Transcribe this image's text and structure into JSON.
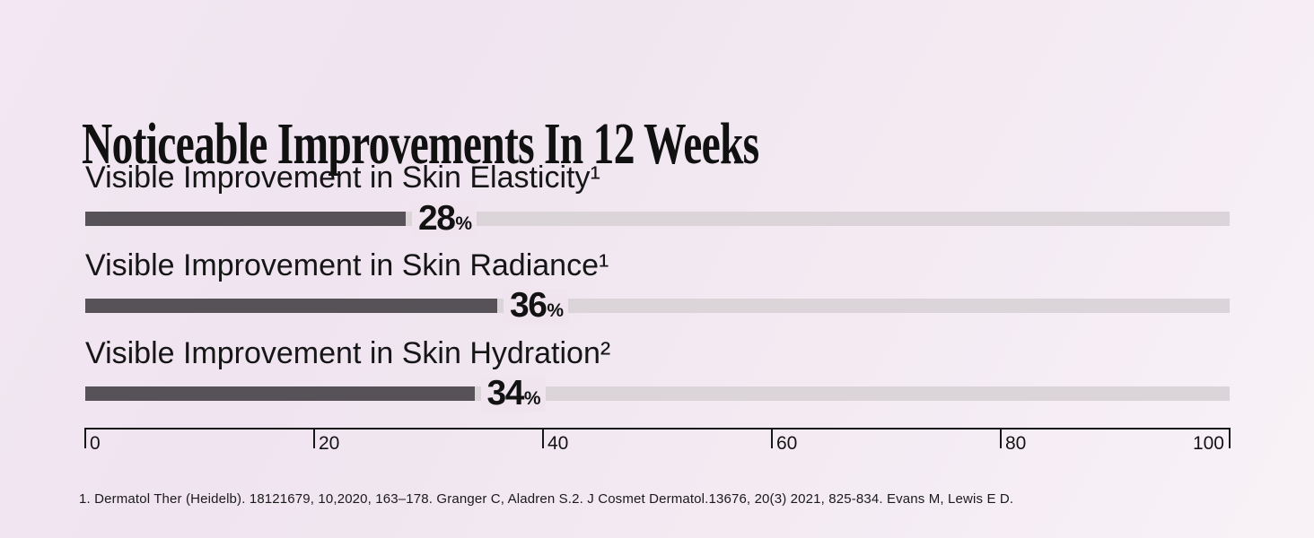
{
  "page": {
    "background_start": "#f2e7f2",
    "background_end": "#f8f2f7",
    "footnote": "1. Dermatol Ther (Heidelb). 18121679, 10,2020, 163–178. Granger C, Aladren S.2. J Cosmet Dermatol.13676, 20(3) 2021, 825-834. Evans M, Lewis E D."
  },
  "chart_data": {
    "type": "bar",
    "orientation": "horizontal",
    "title": "Noticeable Improvements In 12 Weeks",
    "categories": [
      "Visible Improvement in Skin Elasticity¹",
      "Visible Improvement in Skin Radiance¹",
      "Visible Improvement in Skin Hydration²"
    ],
    "values": [
      28,
      36,
      34
    ],
    "rows": [
      {
        "label": "Visible Improvement in Skin Elasticity¹",
        "value": "28",
        "suffix": "%",
        "pct": 28
      },
      {
        "label": "Visible Improvement in Skin Radiance¹",
        "value": "36",
        "suffix": "%",
        "pct": 36
      },
      {
        "label": "Visible Improvement in Skin Hydration²",
        "value": "34",
        "suffix": "%",
        "pct": 34
      }
    ],
    "xlabel": "",
    "ylabel": "",
    "xlim": [
      0,
      100
    ],
    "x_ticks": [
      0,
      20,
      40,
      60,
      80,
      100
    ],
    "x_tick_labels": [
      "0",
      "20",
      "40",
      "60",
      "80",
      "100"
    ],
    "grid": false,
    "legend": false,
    "bar_color": "#575258",
    "track_color": "#dbd5da",
    "text_color": "#141414"
  }
}
